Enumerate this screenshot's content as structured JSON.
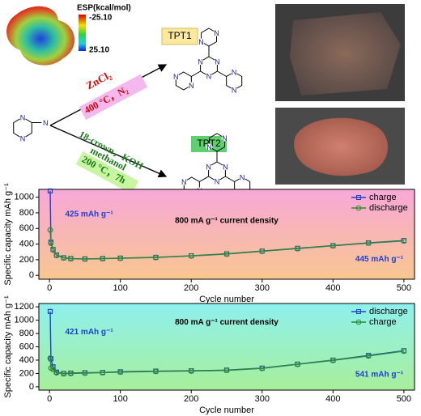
{
  "diagram": {
    "esp_label": "ESP(kcal/mol)",
    "esp_max": "-25.10",
    "esp_min": "25.10",
    "atom_label": "N",
    "route1_reagent": "ZnCl₂",
    "route1_conditions": "400 °C，N₂",
    "route2_reagent": "18-crown，KOH",
    "route2_solvent": "methanol",
    "route2_conditions": "200 °C，7h",
    "product1": "TPT1",
    "product2": "TPT2"
  },
  "chart_data": [
    {
      "type": "line",
      "x_label": "Cycle number",
      "y_label": "Specific capacity mAh g⁻¹",
      "annotations": [
        "425 mAh g⁻¹",
        "800 mA g⁻¹ current density",
        "445 mAh g⁻¹"
      ],
      "x": [
        1,
        2,
        5,
        10,
        20,
        30,
        50,
        75,
        100,
        150,
        200,
        250,
        300,
        350,
        400,
        450,
        500
      ],
      "series": [
        {
          "name": "charge",
          "color": "#1f3fd0",
          "values": [
            1080,
            425,
            330,
            260,
            225,
            215,
            210,
            215,
            220,
            230,
            250,
            275,
            310,
            345,
            380,
            415,
            445
          ]
        },
        {
          "name": "discharge",
          "color": "#2e8b2e",
          "values": [
            580,
            410,
            325,
            255,
            222,
            212,
            208,
            213,
            218,
            228,
            248,
            272,
            308,
            342,
            378,
            412,
            440
          ]
        }
      ],
      "xlim": [
        -15,
        515
      ],
      "ylim": [
        -50,
        1100
      ],
      "xticks": [
        0,
        100,
        200,
        300,
        400,
        500
      ],
      "yticks": [
        0,
        200,
        400,
        600,
        800,
        1000
      ],
      "legend": "upper right"
    },
    {
      "type": "line",
      "x_label": "Cycle number",
      "y_label": "Specific capacity mAh g⁻¹",
      "annotations": [
        "421 mAh g⁻¹",
        "800 mA g⁻¹ current density",
        "541 mAh g⁻¹"
      ],
      "x": [
        1,
        2,
        5,
        10,
        20,
        30,
        50,
        75,
        100,
        150,
        200,
        250,
        300,
        350,
        400,
        450,
        500
      ],
      "series": [
        {
          "name": "discharge",
          "color": "#1f3fd0",
          "values": [
            1130,
            421,
            300,
            220,
            200,
            205,
            210,
            215,
            225,
            235,
            240,
            250,
            280,
            340,
            400,
            470,
            541
          ]
        },
        {
          "name": "charge",
          "color": "#2e8b2e",
          "values": [
            430,
            280,
            260,
            210,
            195,
            200,
            205,
            212,
            220,
            230,
            236,
            246,
            276,
            336,
            396,
            462,
            535
          ]
        }
      ],
      "xlim": [
        -15,
        515
      ],
      "ylim": [
        -50,
        1250
      ],
      "xticks": [
        0,
        100,
        200,
        300,
        400,
        500
      ],
      "yticks": [
        0,
        200,
        400,
        600,
        800,
        1000,
        1200
      ],
      "legend": "upper right"
    }
  ]
}
